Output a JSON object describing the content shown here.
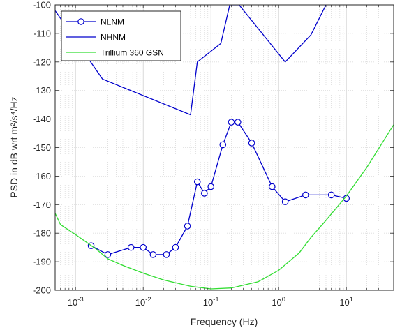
{
  "chart_data": {
    "type": "line",
    "xlabel": "Frequency (Hz)",
    "ylabel": "PSD in dB wrt m²/s⁴/Hz",
    "xscale": "log",
    "xlim": [
      0.0005,
      50
    ],
    "ylim": [
      -200,
      -100
    ],
    "grid": "on",
    "legend_position": "top-left",
    "x_tick_labels": [
      "10-3",
      "10-2",
      "10-1",
      "100",
      "101"
    ],
    "y_tick_labels": [
      "-100",
      "-110",
      "-120",
      "-130",
      "-140",
      "-150",
      "-160",
      "-170",
      "-180",
      "-190",
      "-200"
    ],
    "series": [
      {
        "name": "NLNM",
        "color": "#0000cc",
        "marker": "circle",
        "x": [
          0.0017,
          0.003,
          0.0066,
          0.01,
          0.014,
          0.022,
          0.03,
          0.045,
          0.063,
          0.08,
          0.1,
          0.15,
          0.2,
          0.25,
          0.4,
          0.8,
          1.25,
          2.5,
          6,
          10
        ],
        "y": [
          -184.4,
          -187.5,
          -185,
          -185,
          -187.5,
          -187.5,
          -185,
          -177.5,
          -162,
          -166,
          -163.7,
          -149,
          -141.1,
          -141.1,
          -148.4,
          -163.7,
          -169,
          -166.6,
          -166.6,
          -167.8
        ]
      },
      {
        "name": "NHNM",
        "color": "#0000cc",
        "marker": "none",
        "x": [
          0.0005,
          0.0007,
          0.0025,
          0.05,
          0.063,
          0.14,
          0.19,
          0.26,
          1.25,
          3,
          5
        ],
        "y": [
          -102,
          -107,
          -126,
          -138.5,
          -120,
          -113.5,
          -100,
          -100,
          -120,
          -110.5,
          -100
        ]
      },
      {
        "name": "Trillium 360 GSN",
        "color": "#33dd33",
        "marker": "none",
        "x": [
          0.0005,
          0.0006,
          0.001,
          0.002,
          0.003,
          0.005,
          0.01,
          0.02,
          0.05,
          0.1,
          0.2,
          0.5,
          1,
          2,
          3,
          5,
          10,
          20,
          50
        ],
        "y": [
          -173,
          -177,
          -180.5,
          -185.5,
          -189,
          -191.3,
          -194,
          -196.4,
          -198.6,
          -199.5,
          -199.2,
          -197,
          -193,
          -187,
          -181.5,
          -175.5,
          -167,
          -157,
          -142
        ]
      }
    ]
  }
}
